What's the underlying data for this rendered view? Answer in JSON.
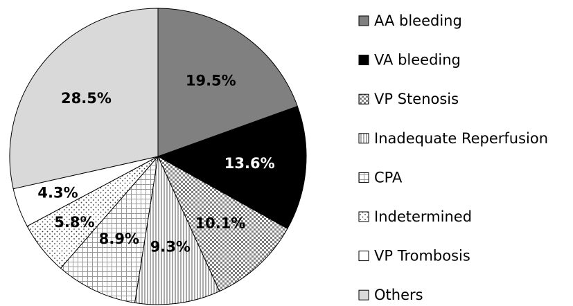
{
  "chart_data": {
    "type": "pie",
    "categories": [
      "AA bleeding",
      "VA bleeding",
      "VP Stenosis",
      "Inadequate Reperfusion",
      "CPA",
      "Indetermined",
      "VP Trombosis",
      "Others"
    ],
    "values": [
      19.5,
      13.6,
      10.1,
      9.3,
      8.9,
      5.8,
      4.3,
      28.5
    ],
    "value_labels": [
      "19.5%",
      "13.6%",
      "10.1%",
      "9.3%",
      "8.9%",
      "5.8%",
      "4.3%",
      "28.5%"
    ],
    "colors": [
      "#808080",
      "#000000",
      "#ffffff",
      "#ffffff",
      "#ffffff",
      "#ffffff",
      "#ffffff",
      "#d9d9d9"
    ],
    "patterns": [
      "solid",
      "solid",
      "checker",
      "vlines",
      "grid",
      "dots",
      "solid",
      "solid"
    ],
    "legend": "right"
  }
}
